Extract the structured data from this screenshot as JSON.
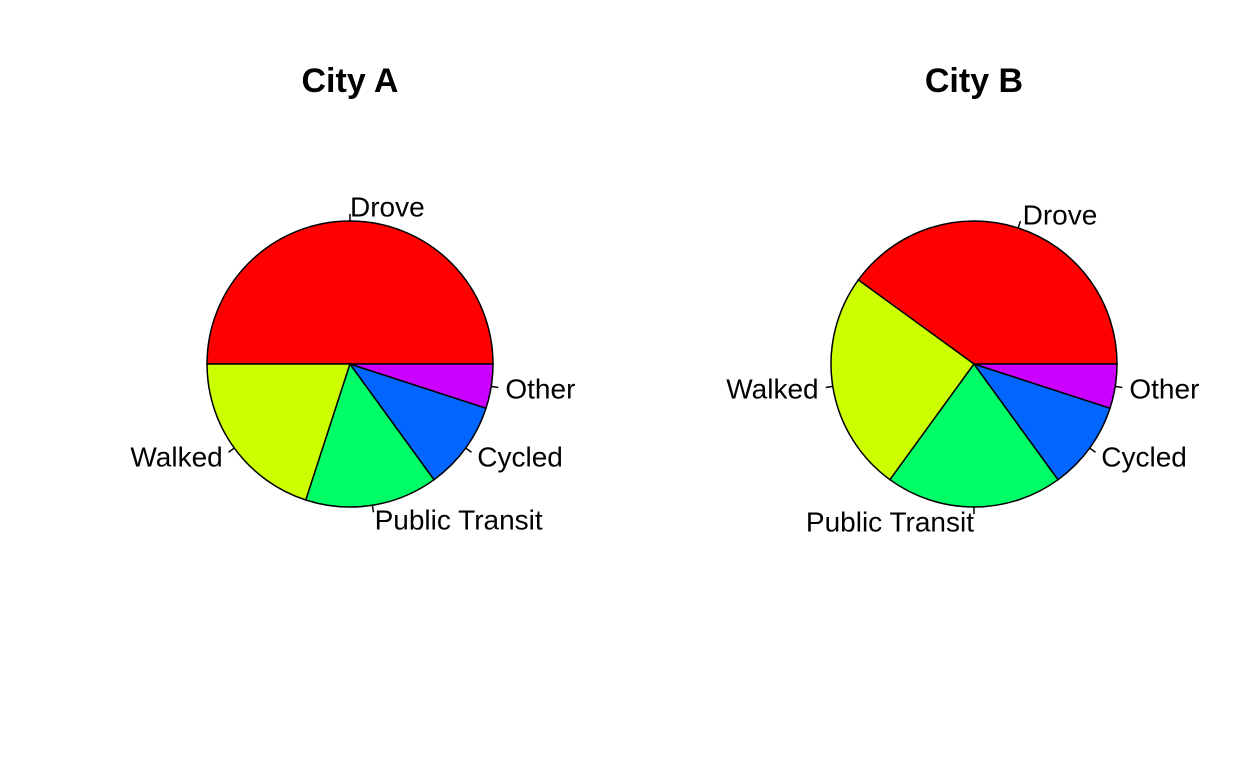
{
  "chart_data": [
    {
      "type": "pie",
      "title": "City A",
      "categories": [
        "Drove",
        "Walked",
        "Public Transit",
        "Cycled",
        "Other"
      ],
      "values": [
        50,
        20,
        15,
        10,
        5
      ],
      "colors": [
        "#FF0000",
        "#CCFF00",
        "#00FF66",
        "#0066FF",
        "#CC00FF"
      ],
      "direction": "counterclockwise",
      "start_angle_deg": 0,
      "legend": "none"
    },
    {
      "type": "pie",
      "title": "City B",
      "categories": [
        "Drove",
        "Walked",
        "Public Transit",
        "Cycled",
        "Other"
      ],
      "values": [
        40,
        25,
        20,
        10,
        5
      ],
      "colors": [
        "#FF0000",
        "#CCFF00",
        "#00FF66",
        "#0066FF",
        "#CC00FF"
      ],
      "direction": "counterclockwise",
      "start_angle_deg": 0,
      "legend": "none"
    }
  ]
}
